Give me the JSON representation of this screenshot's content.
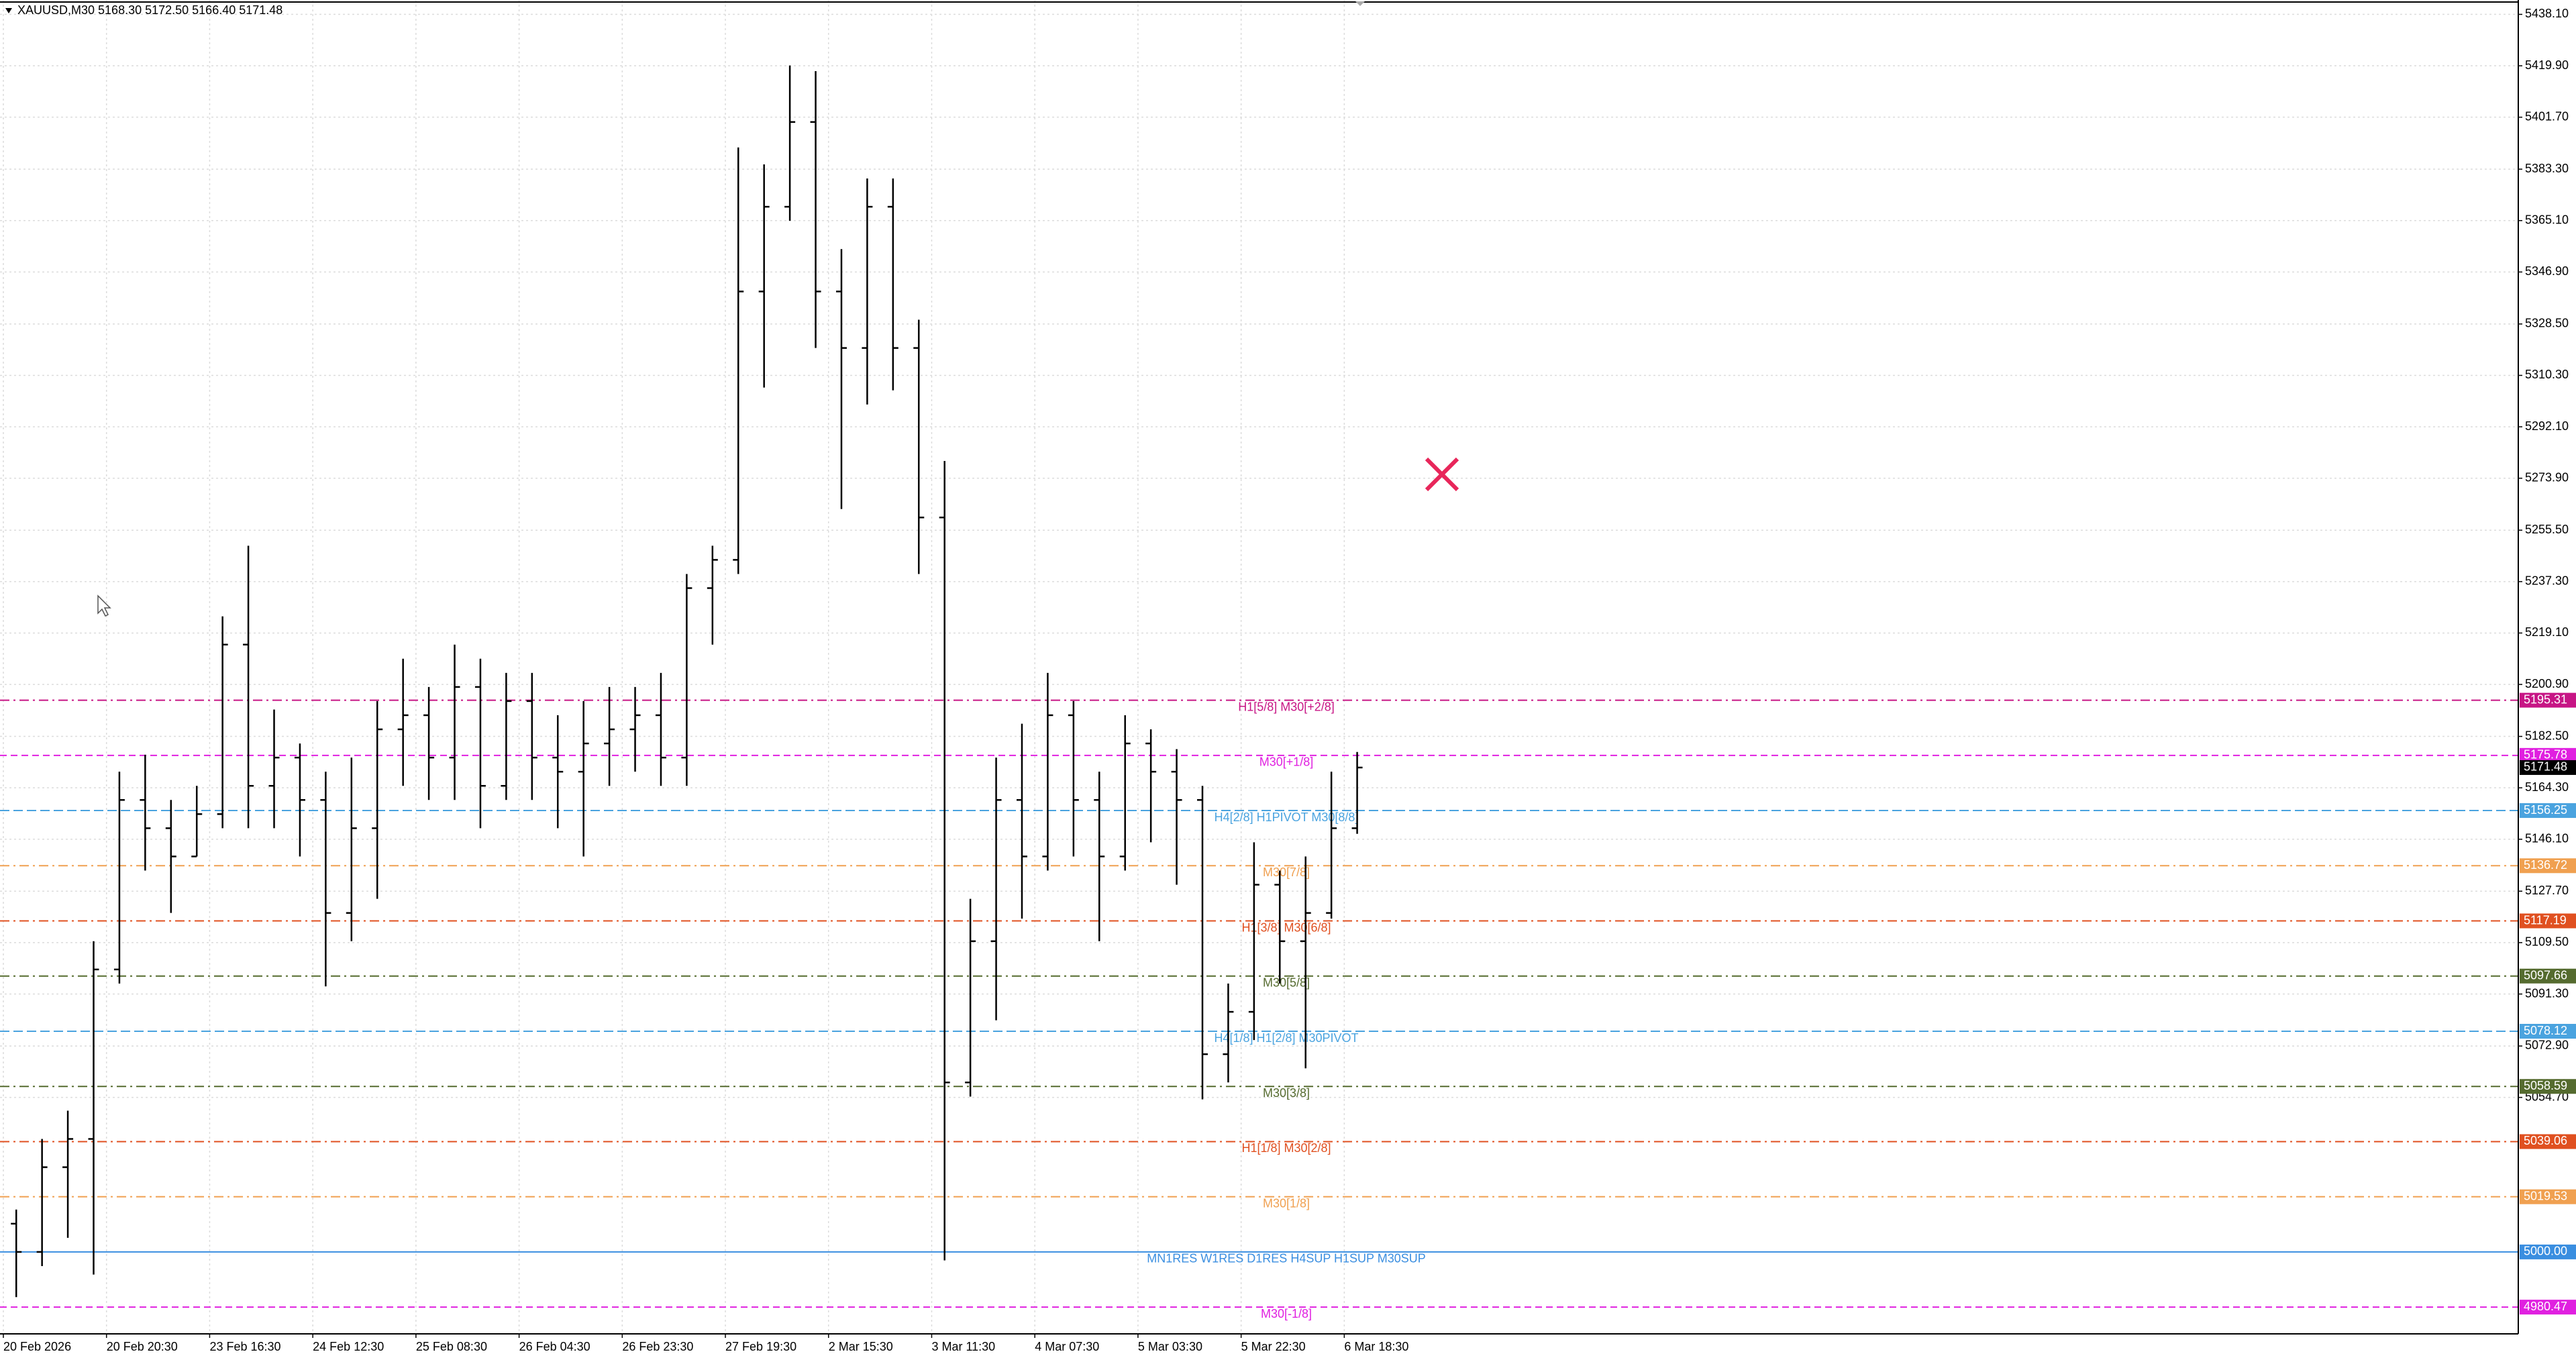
{
  "chart_data": {
    "type": "ohlc",
    "title": "XAUUSD,M30  5168.30 5172.50 5166.40 5171.48",
    "color": "#000000",
    "grid": true,
    "categories": [
      "20 Feb 2026",
      null,
      null,
      null,
      "20 Feb 20:30",
      null,
      null,
      null,
      "23 Feb 16:30",
      null,
      null,
      null,
      "24 Feb 12:30",
      null,
      null,
      null,
      "25 Feb 08:30",
      null,
      null,
      null,
      "26 Feb 04:30",
      null,
      null,
      null,
      "26 Feb 23:30",
      null,
      null,
      null,
      "27 Feb 19:30",
      null,
      null,
      null,
      "2 Mar 15:30",
      null,
      null,
      null,
      "3 Mar 11:30",
      null,
      null,
      null,
      "4 Mar 07:30",
      null,
      null,
      null,
      "5 Mar 03:30",
      null,
      null,
      null,
      "5 Mar 22:30",
      null,
      null,
      null,
      "6 Mar 18:30"
    ],
    "open": [
      5010,
      5000,
      5030,
      5040,
      5100,
      5160,
      5150,
      5140,
      5155,
      5215,
      5165,
      5175,
      5160,
      5120,
      5150,
      5185,
      5190,
      5175,
      5200,
      5165,
      5195,
      5175,
      5170,
      5180,
      5185,
      5190,
      5175,
      5235,
      5245,
      5340,
      5370,
      5400,
      5340,
      5320,
      5370,
      5320,
      5260,
      5060,
      5110,
      5160,
      5140,
      5190,
      5160,
      5140,
      5180,
      5170,
      5160,
      5070,
      5085,
      5130,
      5110,
      5120,
      5150
    ],
    "high": [
      5015,
      5040,
      5050,
      5110,
      5170,
      5176,
      5160,
      5165,
      5225,
      5250,
      5192,
      5180,
      5170,
      5175,
      5195,
      5210,
      5200,
      5215,
      5210,
      5205,
      5205,
      5190,
      5195,
      5200,
      5200,
      5205,
      5240,
      5250,
      5391,
      5385,
      5420,
      5418,
      5355,
      5380,
      5380,
      5330,
      5280,
      5125,
      5175,
      5187,
      5205,
      5195,
      5170,
      5190,
      5185,
      5178,
      5165,
      5095,
      5145,
      5135,
      5140,
      5170,
      5177
    ],
    "low": [
      4984,
      4995,
      5005,
      4992,
      5095,
      5135,
      5120,
      5140,
      5150,
      5150,
      5150,
      5140,
      5094,
      5110,
      5125,
      5165,
      5160,
      5160,
      5150,
      5160,
      5160,
      5150,
      5140,
      5165,
      5170,
      5165,
      5165,
      5215,
      5240,
      5306,
      5365,
      5320,
      5263,
      5300,
      5305,
      5240,
      4997,
      5055,
      5082,
      5118,
      5135,
      5140,
      5110,
      5135,
      5145,
      5130,
      5054,
      5060,
      5075,
      5095,
      5065,
      5118,
      5148
    ],
    "close": [
      5000,
      5030,
      5040,
      5100,
      5160,
      5150,
      5140,
      5155,
      5215,
      5165,
      5175,
      5160,
      5120,
      5150,
      5185,
      5190,
      5175,
      5200,
      5165,
      5195,
      5175,
      5170,
      5180,
      5185,
      5190,
      5175,
      5235,
      5245,
      5340,
      5370,
      5400,
      5340,
      5320,
      5370,
      5320,
      5260,
      5060,
      5110,
      5160,
      5140,
      5190,
      5160,
      5140,
      5180,
      5170,
      5160,
      5070,
      5085,
      5130,
      5110,
      5120,
      5150,
      5171.48
    ],
    "ylim": [
      4971,
      5442
    ],
    "yticks": [
      {
        "value": 5438.1,
        "label": "5438.10"
      },
      {
        "value": 5419.9,
        "label": "5419.90"
      },
      {
        "value": 5401.7,
        "label": "5401.70"
      },
      {
        "value": 5383.3,
        "label": "5383.30"
      },
      {
        "value": 5365.1,
        "label": "5365.10"
      },
      {
        "value": 5346.9,
        "label": "5346.90"
      },
      {
        "value": 5328.5,
        "label": "5328.50"
      },
      {
        "value": 5310.3,
        "label": "5310.30"
      },
      {
        "value": 5292.1,
        "label": "5292.10"
      },
      {
        "value": 5273.9,
        "label": "5273.90"
      },
      {
        "value": 5255.5,
        "label": "5255.50"
      },
      {
        "value": 5237.3,
        "label": "5237.30"
      },
      {
        "value": 5219.1,
        "label": "5219.10"
      },
      {
        "value": 5200.9,
        "label": "5200.90"
      },
      {
        "value": 5182.5,
        "label": "5182.50"
      },
      {
        "value": 5164.3,
        "label": "5164.30"
      },
      {
        "value": 5146.1,
        "label": "5146.10"
      },
      {
        "value": 5127.7,
        "label": "5127.70"
      },
      {
        "value": 5109.5,
        "label": "5109.50"
      },
      {
        "value": 5091.3,
        "label": "5091.30"
      },
      {
        "value": 5072.9,
        "label": "5072.90"
      },
      {
        "value": 5054.7,
        "label": "5054.70"
      }
    ],
    "levels": [
      {
        "label": "H1[5/8] M30[+2/8]",
        "value": 5195.31,
        "color": "#c71585",
        "dash": "14 6 3 6"
      },
      {
        "label": "M30[+1/8]",
        "value": 5175.78,
        "color": "#e020e0",
        "dash": "10 6"
      },
      {
        "label": "H4[2/8] H1PIVOT M30[8/8]",
        "value": 5156.25,
        "color": "#4aa3df",
        "dash": "14 6"
      },
      {
        "label": "M30[7/8]",
        "value": 5136.72,
        "color": "#f0a050",
        "dash": "14 6 3 6"
      },
      {
        "label": "H1[3/8] M30[6/8]",
        "value": 5117.19,
        "color": "#e05020",
        "dash": "14 6 3 6"
      },
      {
        "label": "M30[5/8]",
        "value": 5097.66,
        "color": "#556b2f",
        "dash": "14 6 3 6"
      },
      {
        "label": "H4[1/8] H1[2/8] M30PIVOT",
        "value": 5078.12,
        "color": "#4aa3df",
        "dash": "14 6"
      },
      {
        "label": "M30[3/8]",
        "value": 5058.59,
        "color": "#556b2f",
        "dash": "14 6 3 6"
      },
      {
        "label": "H1[1/8] M30[2/8]",
        "value": 5039.06,
        "color": "#e05020",
        "dash": "14 6 3 6"
      },
      {
        "label": "M30[1/8]",
        "value": 5019.53,
        "color": "#f0a050",
        "dash": "14 6 3 6"
      },
      {
        "label": "MN1RES W1RES D1RES H4SUP H1SUP M30SUP",
        "value": 5000,
        "value_label": "5000.00",
        "color": "#3a8ee0",
        "dash": "none"
      },
      {
        "label": "M30[-1/8]",
        "value": 4980.47,
        "color": "#e020e0",
        "dash": "10 6"
      }
    ],
    "bid": 5171.48
  }
}
